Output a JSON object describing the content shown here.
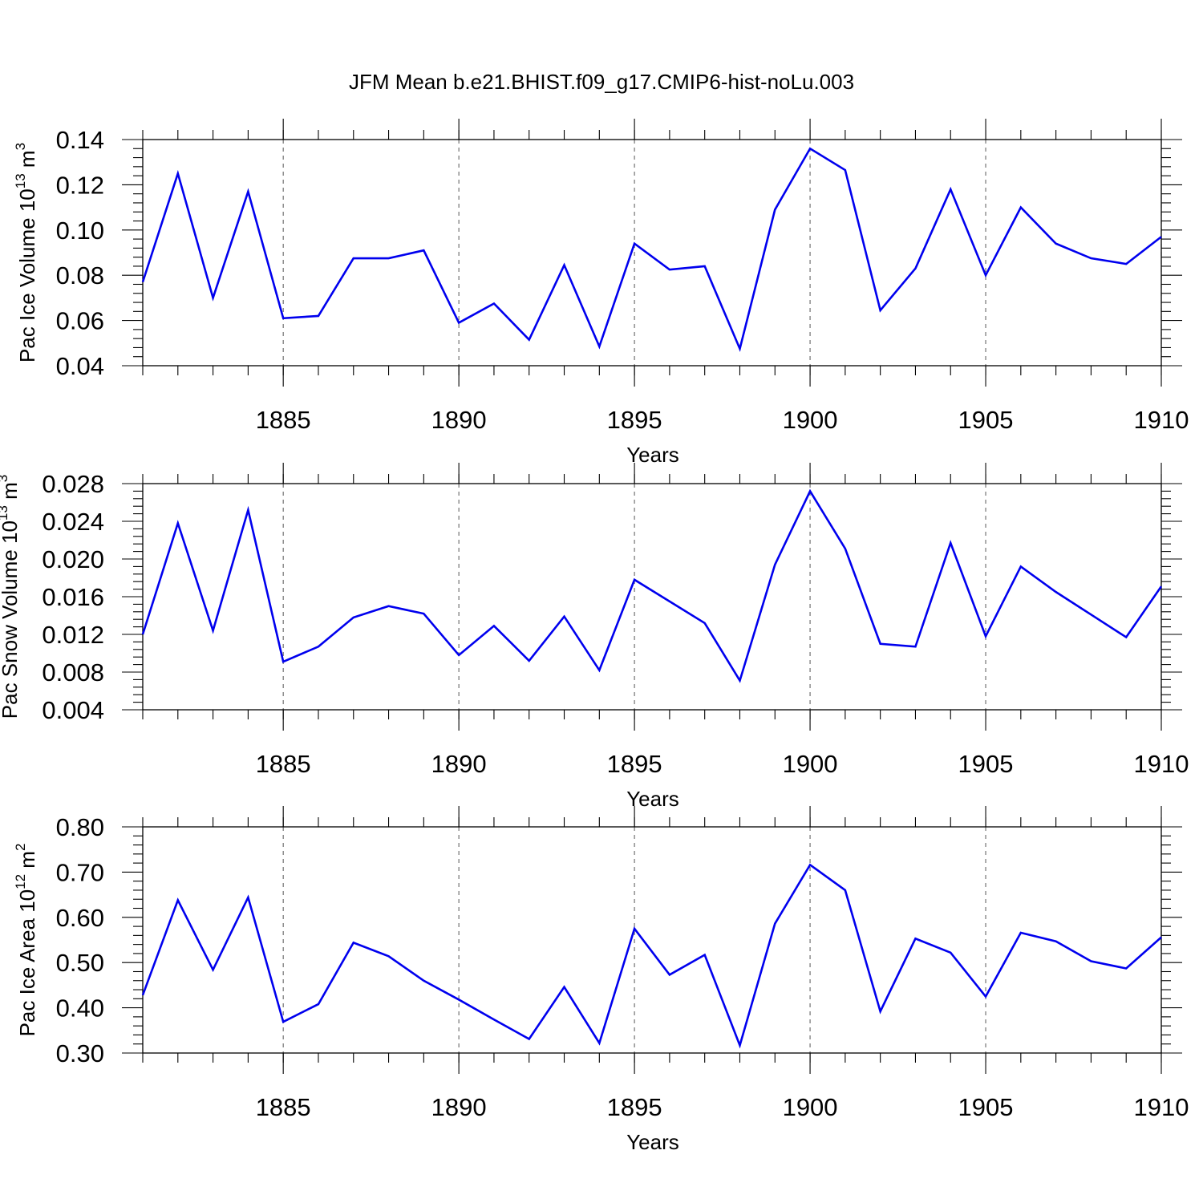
{
  "figure": {
    "title": "JFM Mean b.e21.BHIST.f09_g17.CMIP6-hist-noLu.003",
    "line_color": "#0000ee"
  },
  "chart_data": [
    {
      "type": "line",
      "xlabel": "Years",
      "ylabel_parts": [
        "Pac Ice Volume 10",
        "13",
        " m",
        "3"
      ],
      "x": [
        1881,
        1882,
        1883,
        1884,
        1885,
        1886,
        1887,
        1888,
        1889,
        1890,
        1891,
        1892,
        1893,
        1894,
        1895,
        1896,
        1897,
        1898,
        1899,
        1900,
        1901,
        1902,
        1903,
        1904,
        1905,
        1906,
        1907,
        1908,
        1909,
        1910
      ],
      "xlim": [
        1881,
        1910
      ],
      "xticks": [
        "1885",
        "1890",
        "1895",
        "1900",
        "1905",
        "1910"
      ],
      "ylim": [
        0.04,
        0.14
      ],
      "yticks": [
        "0.04",
        "0.06",
        "0.08",
        "0.10",
        "0.12",
        "0.14"
      ],
      "series": [
        {
          "values": [
            0.077,
            0.125,
            0.07,
            0.117,
            0.061,
            0.062,
            0.0875,
            0.0875,
            0.091,
            0.059,
            0.0675,
            0.0515,
            0.0845,
            0.0485,
            0.094,
            0.0825,
            0.084,
            0.0475,
            0.109,
            0.136,
            0.1265,
            0.0645,
            0.083,
            0.118,
            0.08,
            0.11,
            0.094,
            0.0875,
            0.085,
            0.097
          ]
        }
      ],
      "grid": "dashed vertical at major x ticks"
    },
    {
      "type": "line",
      "xlabel": "Years",
      "ylabel_parts": [
        "Pac Snow Volume 10",
        "13",
        " m",
        "3"
      ],
      "x": [
        1881,
        1882,
        1883,
        1884,
        1885,
        1886,
        1887,
        1888,
        1889,
        1890,
        1891,
        1892,
        1893,
        1894,
        1895,
        1896,
        1897,
        1898,
        1899,
        1900,
        1901,
        1902,
        1903,
        1904,
        1905,
        1906,
        1907,
        1908,
        1909,
        1910
      ],
      "xlim": [
        1881,
        1910
      ],
      "xticks": [
        "1885",
        "1890",
        "1895",
        "1900",
        "1905",
        "1910"
      ],
      "ylim": [
        0.004,
        0.028
      ],
      "yticks": [
        "0.004",
        "0.008",
        "0.012",
        "0.016",
        "0.020",
        "0.024",
        "0.028"
      ],
      "series": [
        {
          "values": [
            0.012,
            0.0238,
            0.0124,
            0.0252,
            0.0091,
            0.0107,
            0.0138,
            0.015,
            0.0142,
            0.0098,
            0.0129,
            0.0092,
            0.0139,
            0.0082,
            0.0178,
            0.0155,
            0.0132,
            0.0071,
            0.0194,
            0.0272,
            0.0211,
            0.011,
            0.0107,
            0.0217,
            0.0118,
            0.0192,
            0.0165,
            0.0141,
            0.0117,
            0.0171
          ]
        }
      ],
      "grid": "dashed vertical at major x ticks"
    },
    {
      "type": "line",
      "xlabel": "Years",
      "ylabel_parts": [
        "Pac Ice Area 10",
        "12",
        " m",
        "2"
      ],
      "x": [
        1881,
        1882,
        1883,
        1884,
        1885,
        1886,
        1887,
        1888,
        1889,
        1890,
        1891,
        1892,
        1893,
        1894,
        1895,
        1896,
        1897,
        1898,
        1899,
        1900,
        1901,
        1902,
        1903,
        1904,
        1905,
        1906,
        1907,
        1908,
        1909,
        1910
      ],
      "xlim": [
        1881,
        1910
      ],
      "xticks": [
        "1885",
        "1890",
        "1895",
        "1900",
        "1905",
        "1910"
      ],
      "ylim": [
        0.3,
        0.8
      ],
      "yticks": [
        "0.30",
        "0.40",
        "0.50",
        "0.60",
        "0.70",
        "0.80"
      ],
      "series": [
        {
          "values": [
            0.428,
            0.638,
            0.484,
            0.644,
            0.369,
            0.408,
            0.544,
            0.514,
            0.46,
            0.418,
            0.374,
            0.331,
            0.446,
            0.322,
            0.575,
            0.473,
            0.517,
            0.317,
            0.586,
            0.716,
            0.66,
            0.392,
            0.553,
            0.522,
            0.425,
            0.566,
            0.547,
            0.503,
            0.487,
            0.556
          ]
        }
      ],
      "grid": "dashed vertical at major x ticks"
    }
  ]
}
